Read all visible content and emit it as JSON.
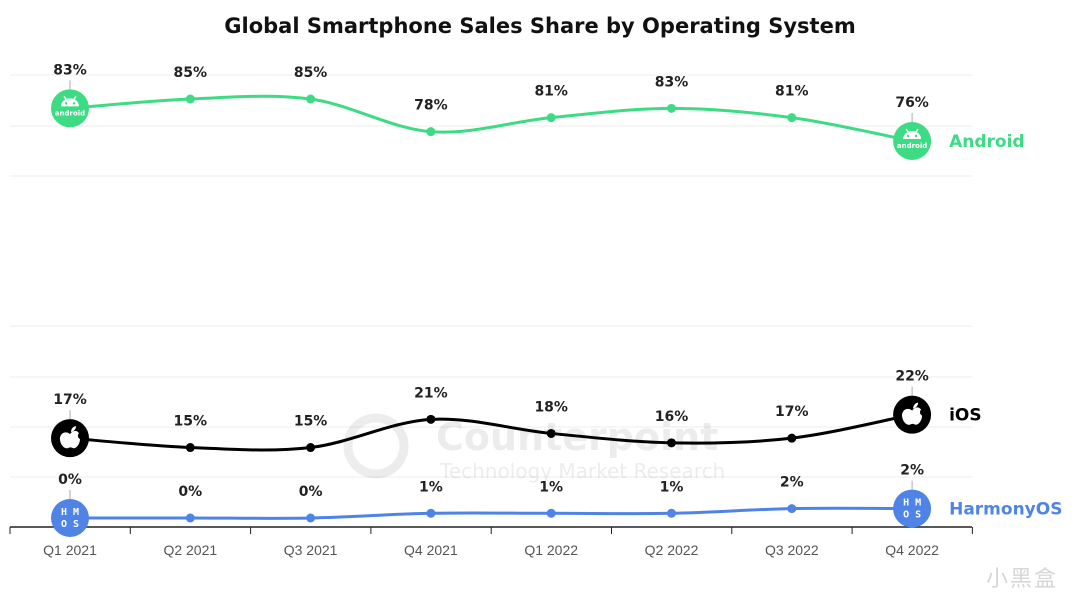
{
  "page": {
    "title": "Global Smartphone Sales Share by Operating System",
    "watermark": {
      "brand": "Counterpoint",
      "tagline": "Technology Market Research"
    },
    "source_mark": "小黑盒"
  },
  "chart_data": {
    "type": "line",
    "title": "Global Smartphone Sales Share by Operating System",
    "categories": [
      "Q1 2021",
      "Q2 2021",
      "Q3 2021",
      "Q4 2021",
      "Q1 2022",
      "Q2 2022",
      "Q3 2022",
      "Q4 2022"
    ],
    "xlabel": "",
    "ylabel": "",
    "grid": true,
    "legend": "right-of-series-ends",
    "series": [
      {
        "name": "Android",
        "color": "#3ddc84",
        "values": [
          83,
          85,
          85,
          78,
          81,
          83,
          81,
          76
        ],
        "labels": [
          "83%",
          "85%",
          "85%",
          "78%",
          "81%",
          "83%",
          "81%",
          "76%"
        ],
        "icon": "android-icon",
        "icon_text": "android"
      },
      {
        "name": "iOS",
        "color": "#000000",
        "values": [
          17,
          15,
          15,
          21,
          18,
          16,
          17,
          22
        ],
        "labels": [
          "17%",
          "15%",
          "15%",
          "21%",
          "18%",
          "16%",
          "17%",
          "22%"
        ],
        "icon": "apple-icon"
      },
      {
        "name": "HarmonyOS",
        "color": "#4f84e6",
        "values": [
          0,
          0,
          0,
          1,
          1,
          1,
          2,
          2
        ],
        "labels": [
          "0%",
          "0%",
          "0%",
          "1%",
          "1%",
          "1%",
          "2%",
          "2%"
        ],
        "icon": "harmonyos-icon",
        "icon_text": "HMOS"
      }
    ]
  }
}
